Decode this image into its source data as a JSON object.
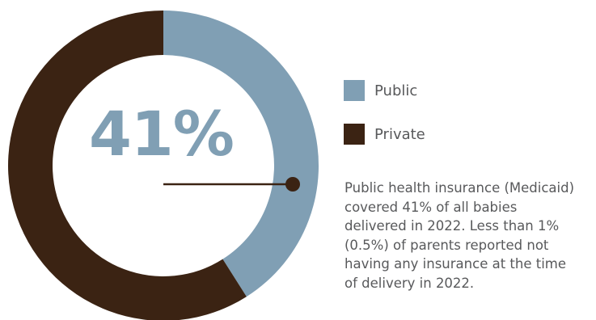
{
  "chart_data": {
    "type": "pie",
    "style": "donut",
    "categories": [
      "Public",
      "Private"
    ],
    "values": [
      41,
      59
    ],
    "unit": "%",
    "center_label": "41%",
    "legend_placement": "right"
  },
  "legend": {
    "items": [
      {
        "label": "Public",
        "color": "#809fb4"
      },
      {
        "label": "Private",
        "color": "#3b2313"
      }
    ]
  },
  "colors": {
    "public": "#809fb4",
    "private": "#3b2313",
    "pointer": "#3b2313",
    "text": "#58595b"
  },
  "note": {
    "text": "Public health insurance (Medicaid)\ncovered 41% of all babies\ndelivered in 2022. Less than 1%\n(0.5%) of parents reported not\nhaving any insurance at the time\nof delivery in 2022."
  }
}
